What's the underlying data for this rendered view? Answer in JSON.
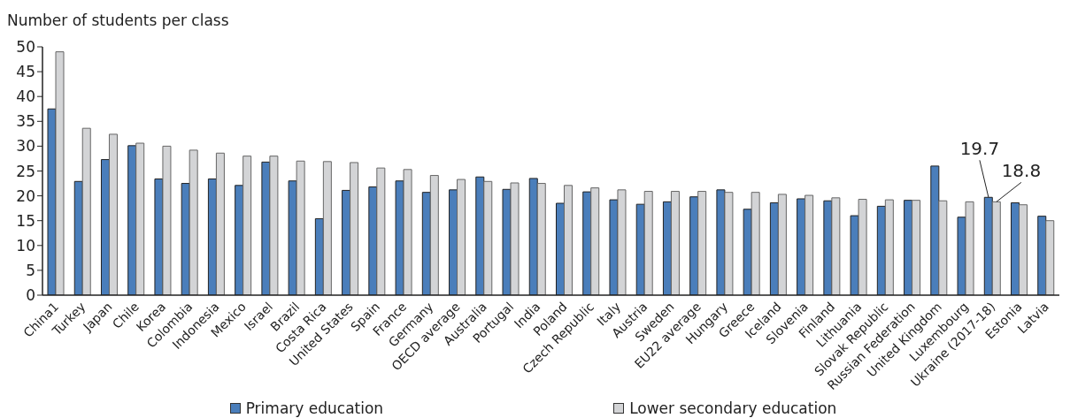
{
  "chart_data": {
    "type": "bar",
    "ylabel": "Number of students per class",
    "categories": [
      "China1",
      "Turkey",
      "Japan",
      "Chile",
      "Korea",
      "Colombia",
      "Indonesia",
      "Mexico",
      "Israel",
      "Brazil",
      "Costa Rica",
      "United States",
      "Spain",
      "France",
      "Germany",
      "OECD average",
      "Australia",
      "Portugal",
      "India",
      "Poland",
      "Czech Republic",
      "Italy",
      "Austria",
      "Sweden",
      "EU22 average",
      "Hungary",
      "Greece",
      "Iceland",
      "Slovenia",
      "Finland",
      "Lithuania",
      "Slovak Republic",
      "Russian Federation",
      "United Kingdom",
      "Luxembourg",
      "Ukraine (2017-18)",
      "Estonia",
      "Latvia"
    ],
    "series": [
      {
        "name": "Primary education",
        "color": "#4a7ebb",
        "values": [
          37.5,
          22.9,
          27.3,
          30.1,
          23.4,
          22.5,
          23.4,
          22.1,
          26.8,
          23.0,
          15.4,
          21.1,
          21.8,
          23.0,
          20.7,
          21.2,
          23.8,
          21.3,
          23.5,
          18.5,
          20.8,
          19.2,
          18.3,
          18.8,
          19.8,
          21.2,
          17.3,
          18.6,
          19.4,
          19.0,
          16.0,
          17.9,
          19.1,
          26.0,
          15.7,
          19.7,
          18.6,
          15.9
        ]
      },
      {
        "name": "Lower secondary education",
        "color": "#d3d4d6",
        "values": [
          49.0,
          33.6,
          32.4,
          30.6,
          30.0,
          29.2,
          28.6,
          28.0,
          28.0,
          27.0,
          26.9,
          26.7,
          25.6,
          25.3,
          24.1,
          23.3,
          22.9,
          22.6,
          22.5,
          22.1,
          21.6,
          21.2,
          20.9,
          20.9,
          20.9,
          20.7,
          20.7,
          20.3,
          20.1,
          19.6,
          19.3,
          19.2,
          19.1,
          19.0,
          18.8,
          18.8,
          18.2,
          15.0
        ]
      }
    ],
    "annotations": [
      {
        "text": "19.7",
        "x": "Ukraine (2017-18)",
        "y": 19.7
      },
      {
        "text": "18.8",
        "x": "Ukraine (2017-18)",
        "y": 18.8
      }
    ],
    "ylim": [
      0,
      50
    ],
    "yticks": [
      0,
      5,
      10,
      15,
      20,
      25,
      30,
      35,
      40,
      45,
      50
    ],
    "legend": "bottom",
    "grid": false
  }
}
